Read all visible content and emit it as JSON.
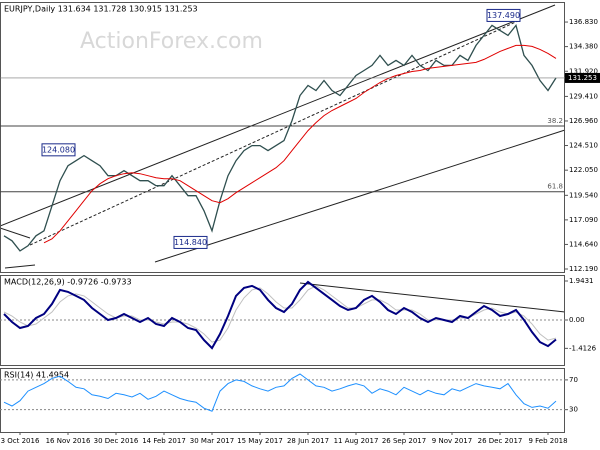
{
  "watermark": "ActionForex.com",
  "chart_data": [
    {
      "type": "line",
      "title": "EURJPY,Daily 131.634 131.728 130.915 131.253",
      "ylim": [
        111.89,
        138.83
      ],
      "yticks": [
        {
          "value": 136.83,
          "label": "136.830"
        },
        {
          "value": 134.38,
          "label": "134.380"
        },
        {
          "value": 131.92,
          "label": "131.920"
        },
        {
          "value": 129.41,
          "label": "129.410"
        },
        {
          "value": 126.96,
          "label": "126.960"
        },
        {
          "value": 124.51,
          "label": "124.510"
        },
        {
          "value": 122.05,
          "label": "122.050"
        },
        {
          "value": 119.54,
          "label": "119.540"
        },
        {
          "value": 117.09,
          "label": "117.090"
        },
        {
          "value": 114.64,
          "label": "114.640"
        },
        {
          "value": 112.19,
          "label": "112.190"
        }
      ],
      "series": [
        {
          "color": "#2f4f4f",
          "values": [
            115.5,
            115.0,
            114.0,
            114.5,
            115.5,
            116.0,
            118.5,
            121.0,
            122.5,
            123.0,
            123.5,
            123.0,
            122.5,
            121.5,
            121.5,
            122.0,
            121.5,
            121.0,
            121.0,
            120.5,
            120.5,
            121.5,
            120.5,
            119.5,
            119.5,
            118.0,
            116.0,
            119.0,
            121.5,
            123.0,
            124.0,
            124.5,
            124.5,
            124.0,
            124.5,
            125.0,
            127.0,
            129.5,
            130.5,
            130.0,
            131.0,
            130.0,
            129.5,
            130.5,
            131.5,
            132.0,
            132.5,
            133.5,
            132.5,
            133.0,
            132.5,
            133.5,
            132.5,
            132.0,
            133.0,
            132.5,
            132.5,
            133.5,
            133.0,
            134.5,
            135.5,
            136.5,
            136.0,
            135.5,
            136.5,
            133.5,
            132.5,
            131.0,
            130.0,
            131.253
          ]
        },
        {
          "color": "#e00000",
          "values": [
            null,
            null,
            null,
            null,
            null,
            114.8,
            115.2,
            116,
            117,
            118,
            119,
            120,
            120.7,
            121.2,
            121.5,
            121.7,
            121.8,
            121.7,
            121.5,
            121.3,
            121.2,
            121.2,
            121,
            120.5,
            120,
            119.5,
            119,
            118.8,
            119.2,
            119.8,
            120.3,
            120.8,
            121.3,
            121.8,
            122.3,
            123,
            124,
            125,
            126,
            126.8,
            127.5,
            128,
            128.4,
            128.8,
            129.2,
            129.8,
            130.3,
            130.8,
            131.2,
            131.5,
            131.7,
            131.9,
            132,
            132.2,
            132.3,
            132.4,
            132.5,
            132.6,
            132.7,
            132.8,
            133.1,
            133.5,
            133.9,
            134.2,
            134.5,
            134.5,
            134.4,
            134.1,
            133.7,
            133.2
          ]
        }
      ],
      "levels": [
        {
          "value": 126.46,
          "label": "38.2"
        },
        {
          "value": 119.9,
          "label": "61.8"
        }
      ],
      "annotations": [
        {
          "value": 137.49,
          "label": "137.490"
        },
        {
          "value": 124.08,
          "label": "124.080"
        },
        {
          "value": 114.84,
          "label": "114.840"
        }
      ]
    },
    {
      "type": "line",
      "title": "MACD(12,26,9) -0.9726 -0.9733",
      "ylim": [
        -2.242,
        2.242
      ],
      "yticks": [
        1.9431,
        {
          "value": 0,
          "label": "0.00"
        },
        -1.4126
      ],
      "hlines": [
        0
      ],
      "series": [
        {
          "color": "#c0c0c0",
          "values": [
            0.4,
            0.2,
            -0.1,
            -0.3,
            -0.2,
            0.1,
            0.4,
            0.9,
            1.2,
            1.3,
            1.2,
            0.9,
            0.6,
            0.3,
            0.1,
            0.2,
            0.2,
            0.0,
            0.0,
            -0.1,
            -0.2,
            -0.1,
            -0.1,
            -0.2,
            -0.4,
            -0.7,
            -1.1,
            -1.0,
            -0.4,
            0.5,
            1.1,
            1.5,
            1.6,
            1.3,
            0.9,
            0.6,
            0.6,
            1.0,
            1.5,
            1.7,
            1.5,
            1.2,
            0.9,
            0.6,
            0.6,
            0.8,
            1.0,
            1.0,
            0.8,
            0.5,
            0.5,
            0.5,
            0.3,
            0.0,
            0.0,
            0.0,
            0.0,
            0.1,
            0.1,
            0.3,
            0.5,
            0.6,
            0.4,
            0.3,
            0.4,
            0.2,
            -0.2,
            -0.7,
            -1.0,
            -0.9
          ]
        },
        {
          "color": "#000080",
          "values": [
            0.3,
            -0.1,
            -0.4,
            -0.3,
            0.1,
            0.3,
            0.8,
            1.5,
            1.4,
            1.2,
            1.0,
            0.6,
            0.3,
            0.0,
            0.1,
            0.3,
            0.1,
            -0.1,
            0.1,
            -0.2,
            -0.3,
            0.1,
            -0.1,
            -0.4,
            -0.5,
            -1.0,
            -1.4,
            -0.7,
            0.2,
            1.2,
            1.6,
            1.7,
            1.5,
            1.0,
            0.6,
            0.4,
            0.8,
            1.5,
            1.9,
            1.6,
            1.3,
            1.0,
            0.7,
            0.5,
            0.6,
            1.0,
            1.2,
            0.9,
            0.5,
            0.3,
            0.6,
            0.4,
            0.1,
            -0.1,
            0.1,
            0.0,
            -0.1,
            0.2,
            0.1,
            0.4,
            0.7,
            0.5,
            0.2,
            0.3,
            0.5,
            0.0,
            -0.6,
            -1.1,
            -1.3,
            -0.9733
          ]
        }
      ]
    },
    {
      "type": "line",
      "title": "RSI(14) 41.4954",
      "ylim": [
        0,
        86
      ],
      "yticks": [
        70,
        30
      ],
      "hlines": [
        70,
        30
      ],
      "categories": [
        null,
        null,
        "3 Oct 2016",
        null,
        null,
        null,
        null,
        null,
        "16 Nov 2016",
        null,
        null,
        null,
        null,
        null,
        "30 Dec 2016",
        null,
        null,
        null,
        null,
        null,
        "14 Feb 2017",
        null,
        null,
        null,
        null,
        null,
        "30 Mar 2017",
        null,
        null,
        null,
        null,
        null,
        "15 May 2017",
        null,
        null,
        null,
        null,
        null,
        "28 Jun 2017",
        null,
        null,
        null,
        null,
        null,
        "11 Aug 2017",
        null,
        null,
        null,
        null,
        null,
        "26 Sep 2017",
        null,
        null,
        null,
        null,
        null,
        "9 Nov 2017",
        null,
        null,
        null,
        null,
        null,
        "26 Dec 2017",
        null,
        null,
        null,
        null,
        null,
        "9 Feb 2018",
        null
      ],
      "series": [
        {
          "color": "#1e90ff",
          "values": [
            40,
            35,
            42,
            55,
            60,
            65,
            72,
            75,
            68,
            60,
            58,
            50,
            48,
            45,
            52,
            50,
            47,
            52,
            44,
            48,
            55,
            50,
            45,
            42,
            40,
            32,
            28,
            55,
            65,
            70,
            68,
            62,
            58,
            55,
            60,
            62,
            72,
            78,
            70,
            62,
            60,
            55,
            58,
            62,
            65,
            62,
            52,
            58,
            55,
            50,
            60,
            55,
            50,
            56,
            52,
            50,
            58,
            55,
            60,
            65,
            62,
            60,
            58,
            65,
            50,
            38,
            33,
            35,
            32,
            41.4954
          ]
        }
      ]
    }
  ]
}
